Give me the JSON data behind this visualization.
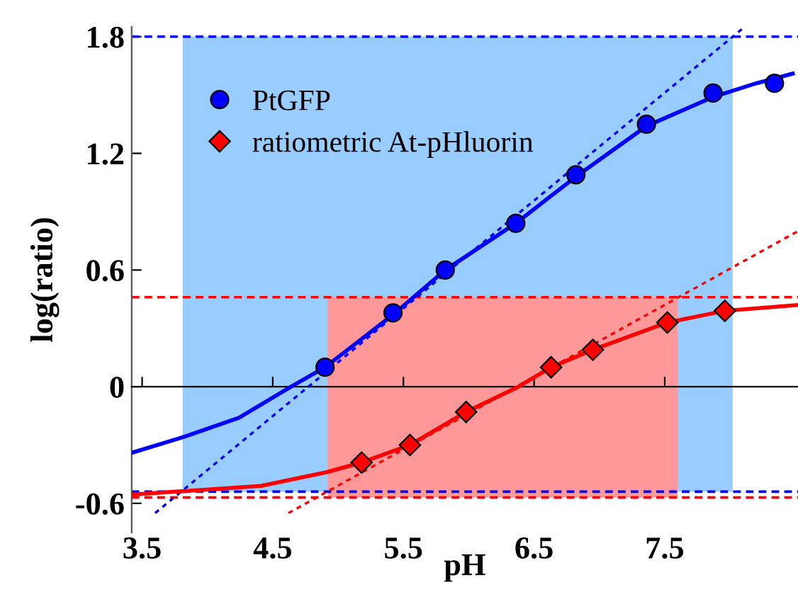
{
  "chart_data": {
    "type": "scatter",
    "xlabel": "pH",
    "ylabel": "log(ratio)",
    "xlim": [
      3.42,
      8.52
    ],
    "ylim": [
      -0.75,
      1.85
    ],
    "xticks": [
      3.5,
      4.5,
      5.5,
      6.5,
      7.5
    ],
    "yticks": [
      -0.6,
      0,
      0.6,
      1.2,
      1.8
    ],
    "grid": false,
    "legend": "top left",
    "series": [
      {
        "type": "area",
        "color": "#99ccff",
        "x": [
          3.81,
          3.81,
          8.02,
          8.02
        ],
        "values": [
          -0.54,
          1.8,
          1.8,
          -0.54
        ]
      },
      {
        "type": "area",
        "color": "#ff9999",
        "x": [
          4.92,
          4.92,
          7.6,
          7.6
        ],
        "values": [
          -0.57,
          0.46,
          0.46,
          -0.57
        ]
      },
      {
        "type": "line",
        "color": "#0000ff",
        "line_style": "dotted",
        "x": [
          3.6,
          8.11
        ],
        "values": [
          -0.65,
          1.85
        ]
      },
      {
        "type": "line",
        "color": "#ff0000",
        "line_style": "dotted",
        "x": [
          4.62,
          8.52
        ],
        "values": [
          -0.65,
          0.8
        ]
      },
      {
        "type": "line",
        "color": "#0000ff",
        "line_style": "solid",
        "x": [
          3.42,
          3.81,
          4.24,
          4.64,
          4.9,
          5.42,
          5.82,
          6.36,
          6.82,
          7.36,
          7.87,
          8.2,
          8.48
        ],
        "values": [
          -0.34,
          -0.26,
          -0.16,
          0,
          0.1,
          0.37,
          0.6,
          0.84,
          1.08,
          1.34,
          1.49,
          1.56,
          1.61
        ]
      },
      {
        "type": "line",
        "color": "#ff0000",
        "line_style": "solid",
        "x": [
          3.42,
          4.41,
          4.91,
          5.18,
          5.55,
          5.98,
          6.38,
          6.63,
          6.95,
          7.52,
          7.96,
          8.52
        ],
        "values": [
          -0.555,
          -0.51,
          -0.44,
          -0.39,
          -0.3,
          -0.13,
          0,
          0.1,
          0.19,
          0.33,
          0.39,
          0.42
        ]
      },
      {
        "name": "PtGFP",
        "marker": "circle",
        "color": "#0000ff",
        "x": [
          4.9,
          5.42,
          5.82,
          6.36,
          6.82,
          7.36,
          7.87,
          8.34
        ],
        "values": [
          0.1,
          0.38,
          0.6,
          0.84,
          1.09,
          1.35,
          1.51,
          1.56
        ]
      },
      {
        "name": "ratiometric At-pHluorin",
        "marker": "diamond",
        "color": "#ff0000",
        "x": [
          5.18,
          5.55,
          5.98,
          6.63,
          6.95,
          7.52,
          7.96
        ],
        "values": [
          -0.39,
          -0.3,
          -0.13,
          0.1,
          0.19,
          0.33,
          0.39
        ]
      }
    ],
    "ref_lines": [
      {
        "axis": "y",
        "value": 1.8,
        "color": "#0000ff",
        "line_style": "dashed"
      },
      {
        "axis": "y",
        "value": -0.54,
        "color": "#0000ff",
        "line_style": "dashed"
      },
      {
        "axis": "y",
        "value": 0.46,
        "color": "#ff0000",
        "line_style": "dashed"
      },
      {
        "axis": "y",
        "value": -0.57,
        "color": "#ff0000",
        "line_style": "dashed"
      }
    ]
  }
}
